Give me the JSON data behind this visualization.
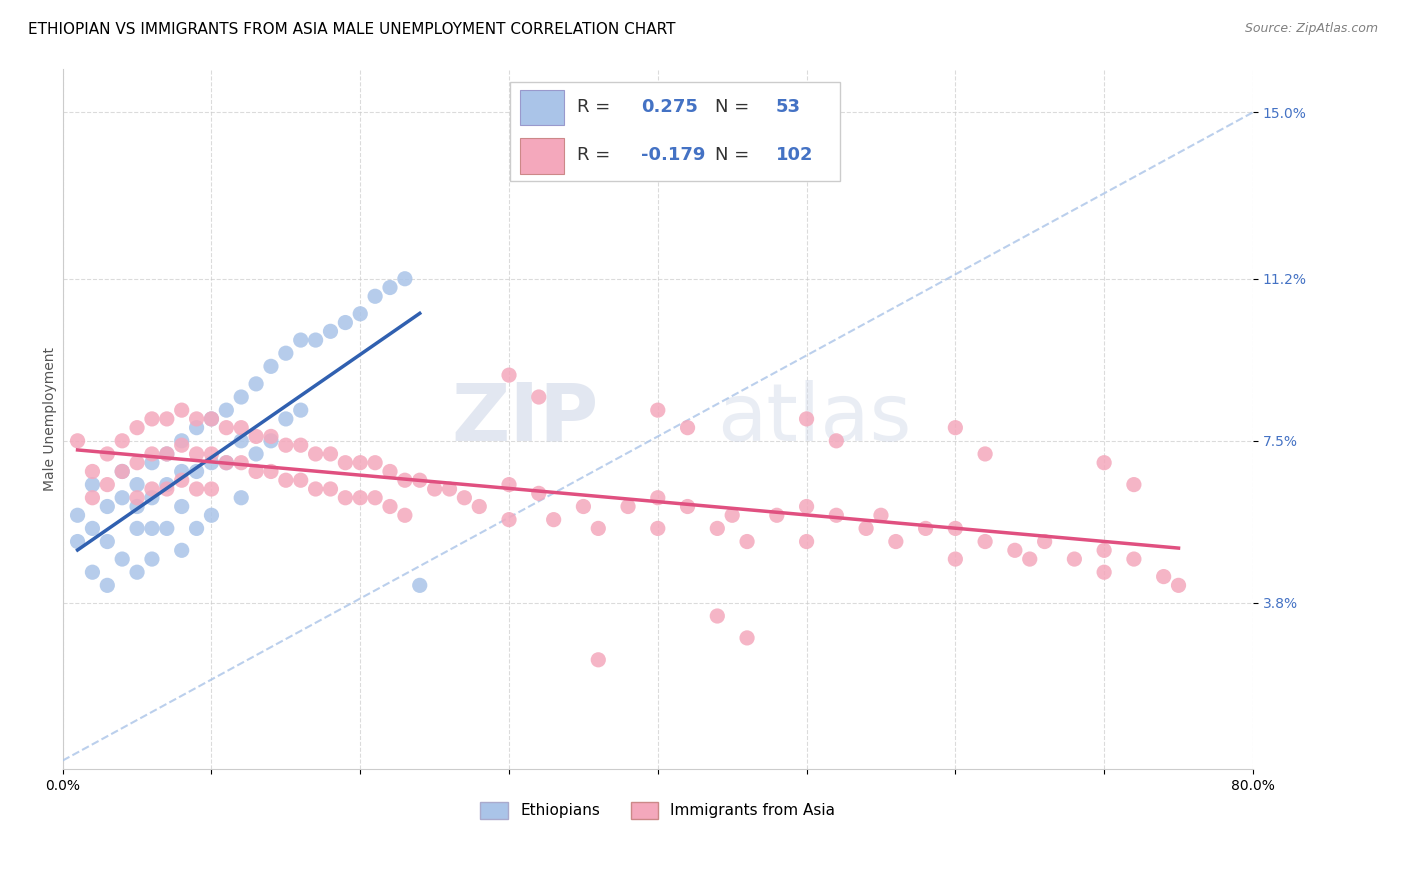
{
  "title": "ETHIOPIAN VS IMMIGRANTS FROM ASIA MALE UNEMPLOYMENT CORRELATION CHART",
  "source": "Source: ZipAtlas.com",
  "ylabel": "Male Unemployment",
  "xlabel": "",
  "xlim": [
    0.0,
    0.8
  ],
  "ylim": [
    0.0,
    0.16
  ],
  "yticks": [
    0.038,
    0.075,
    0.112,
    0.15
  ],
  "ytick_labels": [
    "3.8%",
    "7.5%",
    "11.2%",
    "15.0%"
  ],
  "xticks": [
    0.0,
    0.1,
    0.2,
    0.3,
    0.4,
    0.5,
    0.6,
    0.7,
    0.8
  ],
  "xtick_labels": [
    "0.0%",
    "",
    "",
    "",
    "",
    "",
    "",
    "",
    "80.0%"
  ],
  "watermark_zip": "ZIP",
  "watermark_atlas": "atlas",
  "blue_R": "0.275",
  "blue_N": "53",
  "pink_R": "-0.179",
  "pink_N": "102",
  "blue_color": "#aac4e8",
  "pink_color": "#f4a8bc",
  "blue_line_color": "#3060b0",
  "pink_line_color": "#e05080",
  "dashed_line_color": "#aac4e8",
  "title_fontsize": 11,
  "axis_label_fontsize": 10,
  "tick_fontsize": 10,
  "legend_fontsize": 13,
  "blue_scatter_x": [
    0.01,
    0.01,
    0.02,
    0.02,
    0.02,
    0.03,
    0.03,
    0.03,
    0.04,
    0.04,
    0.04,
    0.05,
    0.05,
    0.05,
    0.05,
    0.06,
    0.06,
    0.06,
    0.06,
    0.07,
    0.07,
    0.07,
    0.08,
    0.08,
    0.08,
    0.08,
    0.09,
    0.09,
    0.09,
    0.1,
    0.1,
    0.1,
    0.11,
    0.11,
    0.12,
    0.12,
    0.12,
    0.13,
    0.13,
    0.14,
    0.14,
    0.15,
    0.15,
    0.16,
    0.16,
    0.17,
    0.18,
    0.19,
    0.2,
    0.21,
    0.22,
    0.23,
    0.24
  ],
  "blue_scatter_y": [
    0.058,
    0.052,
    0.065,
    0.055,
    0.045,
    0.06,
    0.052,
    0.042,
    0.068,
    0.062,
    0.048,
    0.065,
    0.06,
    0.055,
    0.045,
    0.07,
    0.062,
    0.055,
    0.048,
    0.072,
    0.065,
    0.055,
    0.075,
    0.068,
    0.06,
    0.05,
    0.078,
    0.068,
    0.055,
    0.08,
    0.07,
    0.058,
    0.082,
    0.07,
    0.085,
    0.075,
    0.062,
    0.088,
    0.072,
    0.092,
    0.075,
    0.095,
    0.08,
    0.098,
    0.082,
    0.098,
    0.1,
    0.102,
    0.104,
    0.108,
    0.11,
    0.112,
    0.042
  ],
  "pink_scatter_x": [
    0.01,
    0.02,
    0.02,
    0.03,
    0.03,
    0.04,
    0.04,
    0.05,
    0.05,
    0.05,
    0.06,
    0.06,
    0.06,
    0.07,
    0.07,
    0.07,
    0.08,
    0.08,
    0.08,
    0.09,
    0.09,
    0.09,
    0.1,
    0.1,
    0.1,
    0.11,
    0.11,
    0.12,
    0.12,
    0.13,
    0.13,
    0.14,
    0.14,
    0.15,
    0.15,
    0.16,
    0.16,
    0.17,
    0.17,
    0.18,
    0.18,
    0.19,
    0.19,
    0.2,
    0.2,
    0.21,
    0.21,
    0.22,
    0.22,
    0.23,
    0.23,
    0.24,
    0.25,
    0.26,
    0.27,
    0.28,
    0.3,
    0.3,
    0.32,
    0.33,
    0.35,
    0.36,
    0.38,
    0.4,
    0.4,
    0.42,
    0.44,
    0.45,
    0.46,
    0.48,
    0.5,
    0.5,
    0.52,
    0.54,
    0.55,
    0.56,
    0.58,
    0.6,
    0.6,
    0.62,
    0.64,
    0.65,
    0.66,
    0.68,
    0.7,
    0.7,
    0.72,
    0.74,
    0.75,
    0.3,
    0.32,
    0.4,
    0.42,
    0.5,
    0.52,
    0.6,
    0.62,
    0.7,
    0.72,
    0.44,
    0.46,
    0.36
  ],
  "pink_scatter_y": [
    0.075,
    0.068,
    0.062,
    0.072,
    0.065,
    0.075,
    0.068,
    0.078,
    0.07,
    0.062,
    0.08,
    0.072,
    0.064,
    0.08,
    0.072,
    0.064,
    0.082,
    0.074,
    0.066,
    0.08,
    0.072,
    0.064,
    0.08,
    0.072,
    0.064,
    0.078,
    0.07,
    0.078,
    0.07,
    0.076,
    0.068,
    0.076,
    0.068,
    0.074,
    0.066,
    0.074,
    0.066,
    0.072,
    0.064,
    0.072,
    0.064,
    0.07,
    0.062,
    0.07,
    0.062,
    0.07,
    0.062,
    0.068,
    0.06,
    0.066,
    0.058,
    0.066,
    0.064,
    0.064,
    0.062,
    0.06,
    0.065,
    0.057,
    0.063,
    0.057,
    0.06,
    0.055,
    0.06,
    0.062,
    0.055,
    0.06,
    0.055,
    0.058,
    0.052,
    0.058,
    0.06,
    0.052,
    0.058,
    0.055,
    0.058,
    0.052,
    0.055,
    0.055,
    0.048,
    0.052,
    0.05,
    0.048,
    0.052,
    0.048,
    0.05,
    0.045,
    0.048,
    0.044,
    0.042,
    0.09,
    0.085,
    0.082,
    0.078,
    0.08,
    0.075,
    0.078,
    0.072,
    0.07,
    0.065,
    0.035,
    0.03,
    0.025
  ]
}
